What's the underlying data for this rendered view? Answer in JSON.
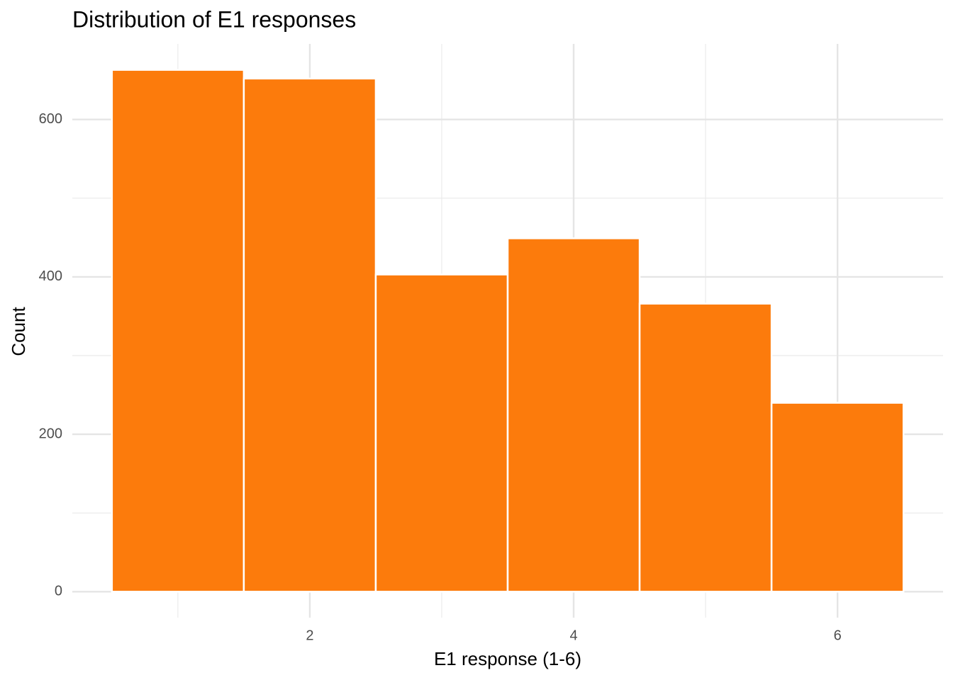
{
  "chart_data": {
    "type": "histogram",
    "title": "Distribution of E1 responses",
    "x_label": "E1 response (1-6)",
    "y_label": "Count",
    "bins": [
      0.5,
      1.5,
      2.5,
      3.5,
      4.5,
      5.5,
      6.5
    ],
    "values": [
      663,
      652,
      403,
      449,
      366,
      240
    ],
    "color": "#fc7b0c",
    "edge_color": "#ffffff",
    "xlim": [
      0.2,
      6.8
    ],
    "ylim": [
      -33,
      696
    ],
    "xticks": [
      2,
      4,
      6
    ],
    "yticks": [
      0,
      200,
      400,
      600
    ],
    "minor_xgrid": [
      1,
      3,
      5
    ],
    "minor_ygrid": [
      100,
      300,
      500
    ],
    "grid": true
  }
}
